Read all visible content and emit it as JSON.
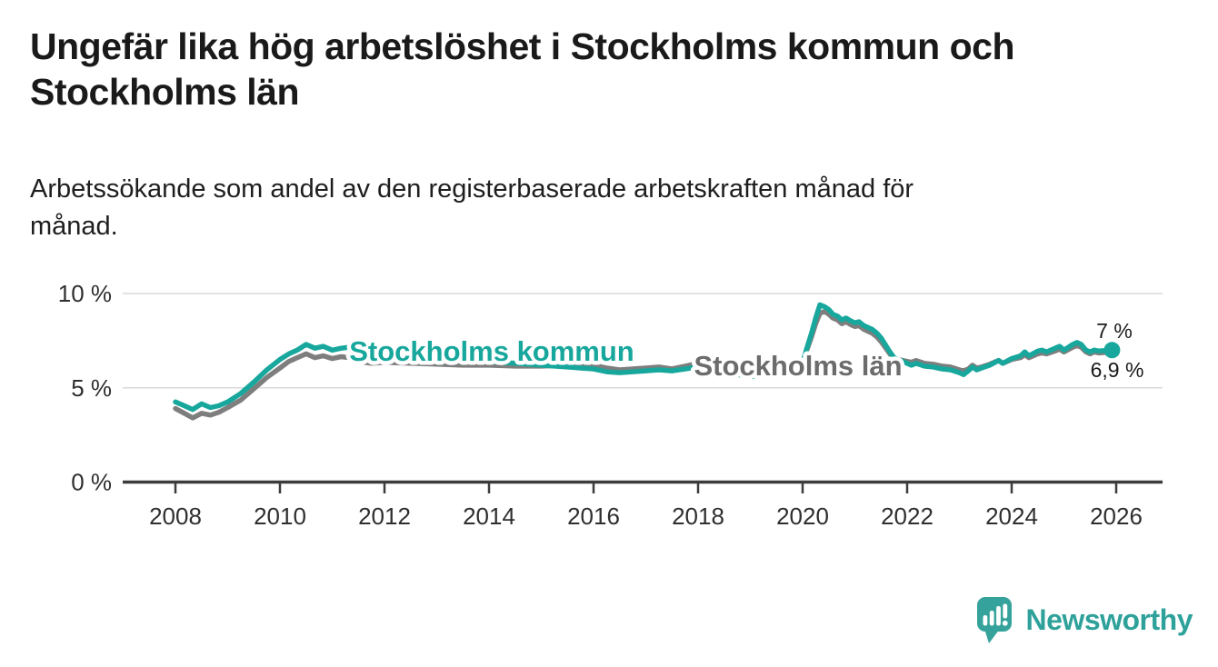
{
  "header": {
    "title_lines": [
      "Ungefär lika hög arbetslöshet i Stockholms kommun och",
      "Stockholms län"
    ],
    "subtitle_lines": [
      "Arbetssökande som andel av den registerbaserade arbetskraften månad för",
      "månad."
    ]
  },
  "footer": {
    "brand": "Newsworthy"
  },
  "colors": {
    "kommun_line": "#18a79c",
    "lan_line": "#7e7e7e",
    "lan_label": "#6c6c6c",
    "grid": "#dadada",
    "axis": "#3c3c3c",
    "annotation": "#1a1a1a",
    "logo": "#35a39b"
  },
  "chart_data": {
    "type": "line",
    "unit": "%",
    "x_ticks": [
      2008,
      2010,
      2012,
      2014,
      2016,
      2018,
      2020,
      2022,
      2024,
      2026
    ],
    "y_ticks": [
      {
        "value": 0,
        "label": "0 %"
      },
      {
        "value": 5,
        "label": "5 %"
      },
      {
        "value": 10,
        "label": "10 %"
      }
    ],
    "ylim": [
      0,
      10.8
    ],
    "xlim_years": [
      2008,
      2026.3
    ],
    "legend_position": "inline-labels-on-lines",
    "grid": "horizontal-only",
    "series": [
      {
        "name": "Stockholms kommun",
        "label": "Stockholms kommun",
        "color": "#18a79c",
        "label_color": "#18a79c",
        "end_label": "7 %",
        "end_value": 7.0,
        "end_dot": true,
        "points": [
          [
            2008.0,
            4.25
          ],
          [
            2008.17,
            4.05
          ],
          [
            2008.33,
            3.85
          ],
          [
            2008.5,
            4.15
          ],
          [
            2008.67,
            3.95
          ],
          [
            2008.83,
            4.05
          ],
          [
            2009.0,
            4.25
          ],
          [
            2009.25,
            4.7
          ],
          [
            2009.5,
            5.3
          ],
          [
            2009.75,
            5.95
          ],
          [
            2010.0,
            6.5
          ],
          [
            2010.17,
            6.8
          ],
          [
            2010.33,
            7.0
          ],
          [
            2010.5,
            7.3
          ],
          [
            2010.67,
            7.1
          ],
          [
            2010.83,
            7.2
          ],
          [
            2011.0,
            7.0
          ],
          [
            2011.17,
            7.1
          ],
          [
            2011.33,
            7.15
          ],
          [
            2011.5,
            6.9
          ],
          [
            2011.75,
            6.85
          ],
          [
            2012.0,
            6.8
          ],
          [
            2012.5,
            6.7
          ],
          [
            2013.0,
            6.6
          ],
          [
            2013.5,
            6.5
          ],
          [
            2014.0,
            6.4
          ],
          [
            2014.5,
            6.3
          ],
          [
            2015.0,
            6.2
          ],
          [
            2015.5,
            6.1
          ],
          [
            2016.0,
            6.0
          ],
          [
            2016.25,
            5.85
          ],
          [
            2016.5,
            5.8
          ],
          [
            2016.75,
            5.85
          ],
          [
            2017.0,
            5.9
          ],
          [
            2017.25,
            5.95
          ],
          [
            2017.5,
            5.9
          ],
          [
            2017.75,
            6.0
          ],
          [
            2018.0,
            6.1
          ],
          [
            2018.25,
            6.0
          ],
          [
            2018.5,
            5.85
          ],
          [
            2018.75,
            5.7
          ],
          [
            2019.0,
            5.6
          ],
          [
            2019.25,
            5.65
          ],
          [
            2019.5,
            5.75
          ],
          [
            2019.75,
            5.95
          ],
          [
            2020.0,
            6.3
          ],
          [
            2020.08,
            7.1
          ],
          [
            2020.17,
            7.9
          ],
          [
            2020.25,
            8.7
          ],
          [
            2020.33,
            9.4
          ],
          [
            2020.42,
            9.3
          ],
          [
            2020.5,
            9.15
          ],
          [
            2020.58,
            8.9
          ],
          [
            2020.67,
            8.8
          ],
          [
            2020.75,
            8.6
          ],
          [
            2020.83,
            8.7
          ],
          [
            2020.92,
            8.55
          ],
          [
            2021.0,
            8.45
          ],
          [
            2021.08,
            8.5
          ],
          [
            2021.17,
            8.3
          ],
          [
            2021.33,
            8.1
          ],
          [
            2021.42,
            7.9
          ],
          [
            2021.5,
            7.65
          ],
          [
            2021.58,
            7.3
          ],
          [
            2021.67,
            6.9
          ],
          [
            2021.75,
            6.6
          ],
          [
            2021.92,
            6.4
          ],
          [
            2022.08,
            6.2
          ],
          [
            2022.17,
            6.3
          ],
          [
            2022.33,
            6.15
          ],
          [
            2022.5,
            6.1
          ],
          [
            2022.67,
            6.0
          ],
          [
            2022.83,
            5.95
          ],
          [
            2023.0,
            5.8
          ],
          [
            2023.08,
            5.7
          ],
          [
            2023.17,
            5.9
          ],
          [
            2023.25,
            6.1
          ],
          [
            2023.33,
            5.95
          ],
          [
            2023.42,
            6.05
          ],
          [
            2023.58,
            6.2
          ],
          [
            2023.75,
            6.45
          ],
          [
            2023.83,
            6.3
          ],
          [
            2024.0,
            6.55
          ],
          [
            2024.17,
            6.7
          ],
          [
            2024.25,
            6.9
          ],
          [
            2024.33,
            6.7
          ],
          [
            2024.5,
            6.95
          ],
          [
            2024.58,
            7.0
          ],
          [
            2024.67,
            6.9
          ],
          [
            2024.83,
            7.1
          ],
          [
            2024.92,
            7.2
          ],
          [
            2025.0,
            7.0
          ],
          [
            2025.17,
            7.3
          ],
          [
            2025.25,
            7.4
          ],
          [
            2025.33,
            7.3
          ],
          [
            2025.42,
            7.0
          ],
          [
            2025.5,
            6.9
          ],
          [
            2025.58,
            7.0
          ],
          [
            2025.67,
            6.95
          ],
          [
            2025.92,
            7.0
          ]
        ]
      },
      {
        "name": "Stockholms län",
        "label": "Stockholms län",
        "color": "#7e7e7e",
        "label_color": "#6c6c6c",
        "end_label": "6,9 %",
        "end_value": 6.9,
        "end_dot": false,
        "points": [
          [
            2008.0,
            3.9
          ],
          [
            2008.17,
            3.65
          ],
          [
            2008.33,
            3.4
          ],
          [
            2008.5,
            3.65
          ],
          [
            2008.67,
            3.55
          ],
          [
            2008.83,
            3.7
          ],
          [
            2009.0,
            3.95
          ],
          [
            2009.25,
            4.35
          ],
          [
            2009.5,
            4.95
          ],
          [
            2009.75,
            5.55
          ],
          [
            2010.0,
            6.05
          ],
          [
            2010.17,
            6.4
          ],
          [
            2010.33,
            6.6
          ],
          [
            2010.5,
            6.8
          ],
          [
            2010.67,
            6.6
          ],
          [
            2010.83,
            6.7
          ],
          [
            2011.0,
            6.55
          ],
          [
            2011.17,
            6.65
          ],
          [
            2011.33,
            6.6
          ],
          [
            2011.5,
            6.4
          ],
          [
            2011.75,
            6.3
          ],
          [
            2012.0,
            6.35
          ],
          [
            2012.5,
            6.3
          ],
          [
            2013.0,
            6.25
          ],
          [
            2013.5,
            6.2
          ],
          [
            2014.0,
            6.2
          ],
          [
            2014.5,
            6.15
          ],
          [
            2015.0,
            6.15
          ],
          [
            2015.5,
            6.2
          ],
          [
            2016.0,
            6.2
          ],
          [
            2016.25,
            6.05
          ],
          [
            2016.5,
            5.95
          ],
          [
            2016.75,
            6.0
          ],
          [
            2017.0,
            6.05
          ],
          [
            2017.25,
            6.1
          ],
          [
            2017.5,
            6.0
          ],
          [
            2017.75,
            6.15
          ],
          [
            2018.0,
            6.3
          ],
          [
            2018.25,
            6.15
          ],
          [
            2018.5,
            6.0
          ],
          [
            2018.75,
            5.9
          ],
          [
            2019.0,
            5.8
          ],
          [
            2019.25,
            5.85
          ],
          [
            2019.5,
            5.9
          ],
          [
            2019.75,
            6.05
          ],
          [
            2020.0,
            6.35
          ],
          [
            2020.08,
            7.0
          ],
          [
            2020.17,
            7.7
          ],
          [
            2020.25,
            8.4
          ],
          [
            2020.33,
            8.95
          ],
          [
            2020.42,
            9.05
          ],
          [
            2020.5,
            8.9
          ],
          [
            2020.58,
            8.7
          ],
          [
            2020.67,
            8.6
          ],
          [
            2020.75,
            8.4
          ],
          [
            2020.83,
            8.5
          ],
          [
            2020.92,
            8.35
          ],
          [
            2021.0,
            8.25
          ],
          [
            2021.08,
            8.3
          ],
          [
            2021.17,
            8.1
          ],
          [
            2021.33,
            7.9
          ],
          [
            2021.42,
            7.7
          ],
          [
            2021.5,
            7.45
          ],
          [
            2021.58,
            7.15
          ],
          [
            2021.67,
            6.8
          ],
          [
            2021.75,
            6.55
          ],
          [
            2021.92,
            6.45
          ],
          [
            2022.08,
            6.35
          ],
          [
            2022.17,
            6.45
          ],
          [
            2022.33,
            6.3
          ],
          [
            2022.5,
            6.25
          ],
          [
            2022.67,
            6.15
          ],
          [
            2022.83,
            6.1
          ],
          [
            2023.0,
            5.95
          ],
          [
            2023.08,
            5.9
          ],
          [
            2023.17,
            6.0
          ],
          [
            2023.25,
            6.2
          ],
          [
            2023.33,
            6.05
          ],
          [
            2023.42,
            6.1
          ],
          [
            2023.58,
            6.25
          ],
          [
            2023.75,
            6.45
          ],
          [
            2023.83,
            6.3
          ],
          [
            2024.0,
            6.5
          ],
          [
            2024.17,
            6.6
          ],
          [
            2024.25,
            6.75
          ],
          [
            2024.33,
            6.6
          ],
          [
            2024.5,
            6.8
          ],
          [
            2024.58,
            6.85
          ],
          [
            2024.67,
            6.8
          ],
          [
            2024.83,
            6.95
          ],
          [
            2024.92,
            7.05
          ],
          [
            2025.0,
            6.9
          ],
          [
            2025.17,
            7.15
          ],
          [
            2025.25,
            7.25
          ],
          [
            2025.33,
            7.15
          ],
          [
            2025.42,
            6.9
          ],
          [
            2025.5,
            6.8
          ],
          [
            2025.58,
            6.9
          ],
          [
            2025.67,
            6.85
          ],
          [
            2025.92,
            6.9
          ]
        ]
      }
    ]
  }
}
